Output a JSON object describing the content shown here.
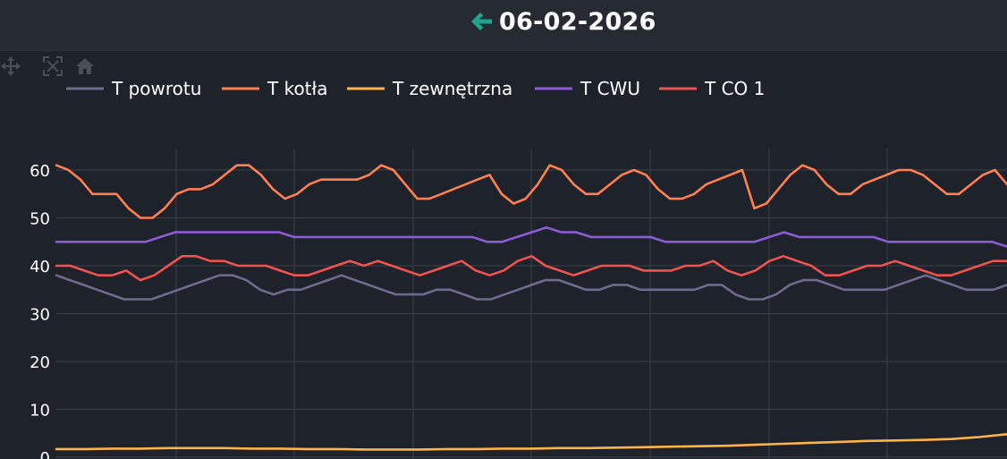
{
  "header": {
    "date": "06-02-2026",
    "back_icon": "arrow-left-icon",
    "accent_color": "#1fa58e"
  },
  "modebar": {
    "icons": [
      "pan-icon",
      "autoscale-icon",
      "home-icon"
    ]
  },
  "chart_data": {
    "type": "line",
    "ylim": [
      0,
      65
    ],
    "yticks": [
      0,
      10,
      20,
      30,
      40,
      50,
      60
    ],
    "grid": true,
    "legend_position": "top-left",
    "series": [
      {
        "name": "T powrotu",
        "color": "#6f6a8f",
        "values": [
          38,
          37,
          36,
          35,
          34,
          33,
          33,
          33,
          34,
          35,
          36,
          37,
          38,
          38,
          37,
          35,
          34,
          35,
          35,
          36,
          37,
          38,
          37,
          36,
          35,
          34,
          34,
          34,
          35,
          35,
          34,
          33,
          33,
          34,
          35,
          36,
          37,
          37,
          36,
          35,
          35,
          36,
          36,
          35,
          35,
          35,
          35,
          35,
          36,
          36,
          34,
          33,
          33,
          34,
          36,
          37,
          37,
          36,
          35,
          35,
          35,
          35,
          36,
          37,
          38,
          37,
          36,
          35,
          35,
          35,
          36
        ]
      },
      {
        "name": "T kotła",
        "color": "#ff7f50",
        "values": [
          61,
          60,
          58,
          55,
          55,
          55,
          52,
          50,
          50,
          52,
          55,
          56,
          56,
          57,
          59,
          61,
          61,
          59,
          56,
          54,
          55,
          57,
          58,
          58,
          58,
          58,
          59,
          61,
          60,
          57,
          54,
          54,
          55,
          56,
          57,
          58,
          59,
          55,
          53,
          54,
          57,
          61,
          60,
          57,
          55,
          55,
          57,
          59,
          60,
          59,
          56,
          54,
          54,
          55,
          57,
          58,
          59,
          60,
          52,
          53,
          56,
          59,
          61,
          60,
          57,
          55,
          55,
          57,
          58,
          59,
          60,
          60,
          59,
          57,
          55,
          55,
          57,
          59,
          60,
          57
        ]
      },
      {
        "name": "T zewnętrzna",
        "color": "#ffb347",
        "values": [
          1.7,
          1.7,
          1.8,
          1.8,
          1.9,
          1.9,
          1.9,
          1.8,
          1.8,
          1.7,
          1.7,
          1.6,
          1.6,
          1.6,
          1.7,
          1.7,
          1.8,
          1.8,
          1.9,
          1.9,
          2.0,
          2.1,
          2.2,
          2.3,
          2.4,
          2.6,
          2.8,
          3.0,
          3.2,
          3.4,
          3.5,
          3.6,
          3.8,
          4.2,
          4.8
        ]
      },
      {
        "name": "T CWU",
        "color": "#8e5bd6",
        "values": [
          45,
          45,
          45,
          45,
          45,
          45,
          45,
          46,
          47,
          47,
          47,
          47,
          47,
          47,
          47,
          47,
          46,
          46,
          46,
          46,
          46,
          46,
          46,
          46,
          46,
          46,
          46,
          46,
          46,
          45,
          45,
          46,
          47,
          48,
          47,
          47,
          46,
          46,
          46,
          46,
          46,
          45,
          45,
          45,
          45,
          45,
          45,
          45,
          46,
          47,
          46,
          46,
          46,
          46,
          46,
          46,
          45,
          45,
          45,
          45,
          45,
          45,
          45,
          45,
          44
        ]
      },
      {
        "name": "T CO 1",
        "color": "#ef5350",
        "values": [
          40,
          40,
          39,
          38,
          38,
          39,
          37,
          38,
          40,
          42,
          42,
          41,
          41,
          40,
          40,
          40,
          39,
          38,
          38,
          39,
          40,
          41,
          40,
          41,
          40,
          39,
          38,
          39,
          40,
          41,
          39,
          38,
          39,
          41,
          42,
          40,
          39,
          38,
          39,
          40,
          40,
          40,
          39,
          39,
          39,
          40,
          40,
          41,
          39,
          38,
          39,
          41,
          42,
          41,
          40,
          38,
          38,
          39,
          40,
          40,
          41,
          40,
          39,
          38,
          38,
          39,
          40,
          41,
          41
        ]
      }
    ]
  }
}
